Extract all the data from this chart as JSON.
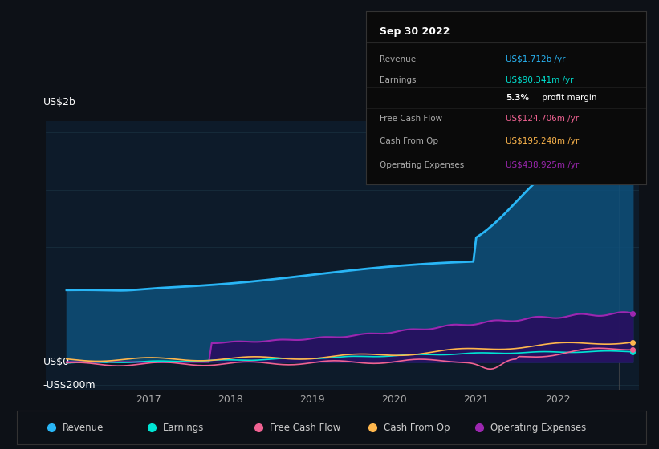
{
  "bg_color": "#0d1117",
  "plot_bg_color": "#0d1b2a",
  "grid_color": "#1e3a4a",
  "ylabel_top": "US$2b",
  "ylabel_zero": "US$0",
  "ylabel_neg": "-US$200m",
  "ylim": [
    -250000000,
    2100000000
  ],
  "xlim_start": 2015.75,
  "xlim_end": 2023.0,
  "xticks": [
    2017,
    2018,
    2019,
    2020,
    2021,
    2022
  ],
  "series_colors": {
    "revenue": "#29b6f6",
    "earnings": "#00e5d4",
    "free_cash_flow": "#f06292",
    "cash_from_op": "#ffb74d",
    "operating_expenses": "#9c27b0"
  },
  "fill_colors": {
    "revenue": "#0d4f7a",
    "operating_expenses": "#2a0a5e"
  },
  "legend_items": [
    {
      "label": "Revenue",
      "color": "#29b6f6"
    },
    {
      "label": "Earnings",
      "color": "#00e5d4"
    },
    {
      "label": "Free Cash Flow",
      "color": "#f06292"
    },
    {
      "label": "Cash From Op",
      "color": "#ffb74d"
    },
    {
      "label": "Operating Expenses",
      "color": "#9c27b0"
    }
  ],
  "tooltip_title": "Sep 30 2022",
  "tooltip_rows": [
    {
      "label": "Revenue",
      "value": "US$1.712b /yr",
      "value_color": "#29b6f6",
      "label_color": "#aaaaaa",
      "bold_part": null
    },
    {
      "label": "Earnings",
      "value": "US$90.341m /yr",
      "value_color": "#00e5d4",
      "label_color": "#aaaaaa",
      "bold_part": null
    },
    {
      "label": "",
      "value": "5.3% profit margin",
      "value_color": "#ffffff",
      "label_color": "#aaaaaa",
      "bold_part": "5.3%"
    },
    {
      "label": "Free Cash Flow",
      "value": "US$124.706m /yr",
      "value_color": "#f06292",
      "label_color": "#aaaaaa",
      "bold_part": null
    },
    {
      "label": "Cash From Op",
      "value": "US$195.248m /yr",
      "value_color": "#ffb74d",
      "label_color": "#aaaaaa",
      "bold_part": null
    },
    {
      "label": "Operating Expenses",
      "value": "US$438.925m /yr",
      "value_color": "#9c27b0",
      "label_color": "#aaaaaa",
      "bold_part": null
    }
  ]
}
